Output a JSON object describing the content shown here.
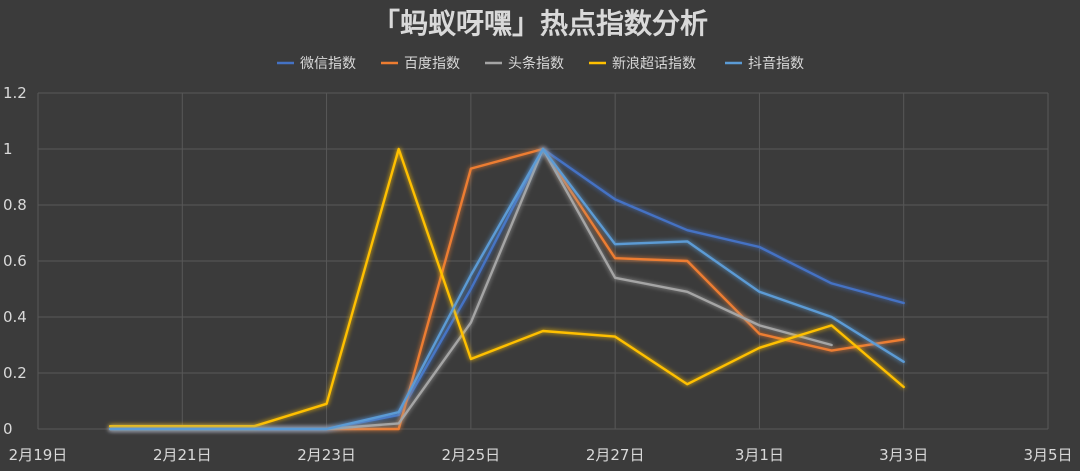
{
  "chart_data": {
    "type": "line",
    "title": "「蚂蚁呀嘿」热点指数分析",
    "xlabel": "",
    "ylabel": "",
    "x_ticks": [
      "2月19日",
      "2月21日",
      "2月23日",
      "2月25日",
      "2月27日",
      "3月1日",
      "3月3日",
      "3月5日"
    ],
    "y_ticks": [
      "0",
      "0.2",
      "0.4",
      "0.6",
      "0.8",
      "1",
      "1.2"
    ],
    "x_range_days": [
      0,
      14
    ],
    "ylim": [
      0,
      1.2
    ],
    "grid": true,
    "legend_position": "top",
    "x": [
      "2月20日",
      "2月21日",
      "2月22日",
      "2月23日",
      "2月24日",
      "2月25日",
      "2月26日",
      "2月27日",
      "2月28日",
      "3月1日",
      "3月2日",
      "3月3日"
    ],
    "series": [
      {
        "name": "微信指数",
        "color": "#4472c4",
        "values": [
          0,
          0,
          0,
          0,
          0.05,
          0.5,
          1.0,
          0.82,
          0.71,
          0.65,
          0.52,
          0.45
        ]
      },
      {
        "name": "百度指数",
        "color": "#ed7d31",
        "values": [
          0,
          0,
          0,
          0,
          0,
          0.93,
          1.0,
          0.61,
          0.6,
          0.34,
          0.28,
          0.32
        ]
      },
      {
        "name": "头条指数",
        "color": "#a5a5a5",
        "values": [
          0,
          0,
          0,
          0,
          0.02,
          0.38,
          1.0,
          0.54,
          0.49,
          0.37,
          0.3,
          null
        ]
      },
      {
        "name": "新浪超话指数",
        "color": "#ffc000",
        "values": [
          0.01,
          0.01,
          0.01,
          0.09,
          1.0,
          0.25,
          0.35,
          0.33,
          0.16,
          0.29,
          0.37,
          0.15
        ]
      },
      {
        "name": "抖音指数",
        "color": "#5b9bd5",
        "values": [
          0,
          0,
          0,
          0,
          0.06,
          0.55,
          1.0,
          0.66,
          0.67,
          0.49,
          0.4,
          0.24
        ]
      }
    ]
  }
}
